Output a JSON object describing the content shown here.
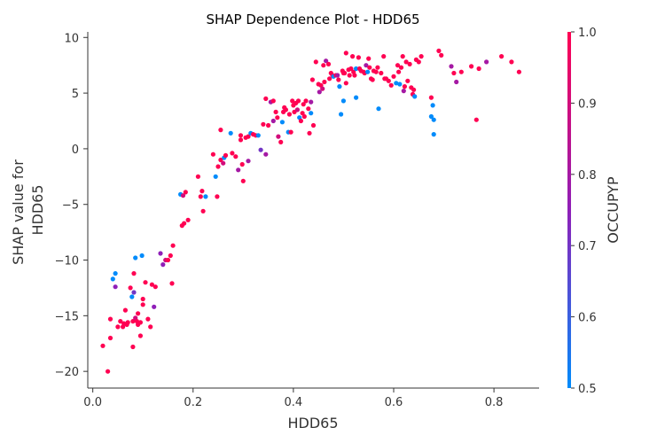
{
  "chart_data": {
    "type": "scatter",
    "title": "SHAP Dependence Plot - HDD65",
    "xlabel": "HDD65",
    "ylabel_lines": [
      "SHAP value for",
      "HDD65"
    ],
    "colorbar_label": "OCCUPYP",
    "xlim": [
      -0.01,
      0.89
    ],
    "ylim": [
      -21.5,
      10.5
    ],
    "xticks": [
      0.0,
      0.2,
      0.4,
      0.6,
      0.8
    ],
    "xtick_labels": [
      "0.0",
      "0.2",
      "0.4",
      "0.6",
      "0.8"
    ],
    "yticks": [
      10,
      5,
      0,
      -5,
      -10,
      -15,
      -20
    ],
    "ytick_labels": [
      "10",
      "5",
      "0",
      "−5",
      "−10",
      "−15",
      "−20"
    ],
    "colorbar_range": [
      0.5,
      1.0
    ],
    "colorbar_ticks": [
      1.0,
      0.9,
      0.8,
      0.7,
      0.6,
      0.5
    ],
    "colorbar_tick_labels": [
      "1.0",
      "0.9",
      "0.8",
      "0.7",
      "0.6",
      "0.5"
    ],
    "colors": {
      "low": "#008bfb",
      "mid": "#8f1fb8",
      "high": "#ff0052"
    },
    "points": [
      [
        0.02,
        -17.7,
        1.0
      ],
      [
        0.03,
        -20.0,
        1.0
      ],
      [
        0.035,
        -15.3,
        1.0
      ],
      [
        0.035,
        -17.0,
        1.0
      ],
      [
        0.04,
        -11.7,
        0.5
      ],
      [
        0.045,
        -11.2,
        0.5
      ],
      [
        0.045,
        -12.4,
        0.75
      ],
      [
        0.05,
        -16.0,
        1.0
      ],
      [
        0.055,
        -15.5,
        1.0
      ],
      [
        0.06,
        -16.0,
        1.0
      ],
      [
        0.062,
        -15.7,
        1.0
      ],
      [
        0.065,
        -14.5,
        1.0
      ],
      [
        0.068,
        -15.8,
        1.0
      ],
      [
        0.07,
        -15.6,
        1.0
      ],
      [
        0.075,
        -12.5,
        1.0
      ],
      [
        0.078,
        -13.3,
        0.5
      ],
      [
        0.08,
        -15.5,
        1.0
      ],
      [
        0.08,
        -17.8,
        1.0
      ],
      [
        0.082,
        -11.2,
        1.0
      ],
      [
        0.082,
        -12.9,
        0.7
      ],
      [
        0.085,
        -15.2,
        0.9
      ],
      [
        0.085,
        -9.8,
        0.5
      ],
      [
        0.088,
        -15.5,
        1.0
      ],
      [
        0.09,
        -15.8,
        1.0
      ],
      [
        0.09,
        -14.8,
        1.0
      ],
      [
        0.095,
        -15.6,
        1.0
      ],
      [
        0.095,
        -16.8,
        1.0
      ],
      [
        0.098,
        -9.6,
        0.5
      ],
      [
        0.1,
        -14.0,
        1.0
      ],
      [
        0.1,
        -13.5,
        1.0
      ],
      [
        0.105,
        -12.0,
        1.0
      ],
      [
        0.11,
        -15.3,
        1.0
      ],
      [
        0.115,
        -16.0,
        1.0
      ],
      [
        0.118,
        -12.2,
        1.0
      ],
      [
        0.122,
        -14.2,
        0.75
      ],
      [
        0.125,
        -12.4,
        1.0
      ],
      [
        0.135,
        -9.4,
        0.75
      ],
      [
        0.14,
        -10.4,
        0.75
      ],
      [
        0.145,
        -10.0,
        0.9
      ],
      [
        0.15,
        -10.0,
        1.0
      ],
      [
        0.155,
        -9.6,
        1.0
      ],
      [
        0.158,
        -12.1,
        1.0
      ],
      [
        0.16,
        -8.7,
        1.0
      ],
      [
        0.175,
        -4.1,
        0.5
      ],
      [
        0.178,
        -6.9,
        1.0
      ],
      [
        0.18,
        -4.2,
        0.9
      ],
      [
        0.182,
        -6.7,
        1.0
      ],
      [
        0.185,
        -3.9,
        1.0
      ],
      [
        0.19,
        -6.4,
        1.0
      ],
      [
        0.21,
        -2.5,
        1.0
      ],
      [
        0.215,
        -4.3,
        1.0
      ],
      [
        0.218,
        -3.8,
        1.0
      ],
      [
        0.22,
        -5.6,
        1.0
      ],
      [
        0.225,
        -4.3,
        0.5
      ],
      [
        0.24,
        -0.5,
        1.0
      ],
      [
        0.245,
        -2.5,
        0.5
      ],
      [
        0.248,
        -4.3,
        1.0
      ],
      [
        0.25,
        -1.6,
        1.0
      ],
      [
        0.255,
        1.7,
        1.0
      ],
      [
        0.255,
        -1.0,
        1.0
      ],
      [
        0.26,
        -1.3,
        0.9
      ],
      [
        0.262,
        -0.8,
        0.5
      ],
      [
        0.265,
        -0.6,
        1.0
      ],
      [
        0.275,
        1.4,
        0.5
      ],
      [
        0.278,
        -0.4,
        1.0
      ],
      [
        0.285,
        -0.7,
        1.0
      ],
      [
        0.29,
        -1.9,
        0.8
      ],
      [
        0.295,
        1.2,
        1.0
      ],
      [
        0.295,
        0.8,
        1.0
      ],
      [
        0.298,
        -1.4,
        1.0
      ],
      [
        0.3,
        -2.9,
        1.0
      ],
      [
        0.305,
        1.0,
        1.0
      ],
      [
        0.31,
        -1.1,
        0.8
      ],
      [
        0.31,
        1.1,
        1.0
      ],
      [
        0.315,
        1.4,
        0.5
      ],
      [
        0.32,
        1.3,
        1.0
      ],
      [
        0.325,
        1.2,
        1.0
      ],
      [
        0.33,
        1.2,
        0.5
      ],
      [
        0.335,
        -0.1,
        0.7
      ],
      [
        0.34,
        2.2,
        1.0
      ],
      [
        0.345,
        4.5,
        1.0
      ],
      [
        0.345,
        -0.5,
        0.8
      ],
      [
        0.35,
        2.1,
        1.0
      ],
      [
        0.355,
        4.2,
        0.8
      ],
      [
        0.36,
        4.3,
        1.0
      ],
      [
        0.36,
        2.5,
        0.8
      ],
      [
        0.365,
        3.3,
        1.0
      ],
      [
        0.368,
        2.8,
        1.0
      ],
      [
        0.37,
        1.1,
        0.9
      ],
      [
        0.375,
        0.6,
        1.0
      ],
      [
        0.378,
        2.4,
        0.5
      ],
      [
        0.38,
        3.3,
        1.0
      ],
      [
        0.382,
        3.7,
        1.0
      ],
      [
        0.385,
        3.5,
        1.0
      ],
      [
        0.39,
        1.5,
        0.5
      ],
      [
        0.392,
        3.1,
        1.0
      ],
      [
        0.395,
        1.5,
        1.0
      ],
      [
        0.398,
        4.3,
        1.0
      ],
      [
        0.4,
        3.9,
        1.0
      ],
      [
        0.402,
        3.3,
        1.0
      ],
      [
        0.405,
        4.1,
        1.0
      ],
      [
        0.408,
        3.5,
        0.9
      ],
      [
        0.41,
        4.3,
        1.0
      ],
      [
        0.412,
        2.8,
        0.5
      ],
      [
        0.415,
        2.5,
        1.0
      ],
      [
        0.418,
        3.2,
        1.0
      ],
      [
        0.42,
        4.0,
        1.0
      ],
      [
        0.422,
        2.9,
        1.0
      ],
      [
        0.425,
        4.3,
        1.0
      ],
      [
        0.43,
        3.6,
        1.0
      ],
      [
        0.432,
        1.4,
        1.0
      ],
      [
        0.435,
        4.2,
        0.8
      ],
      [
        0.435,
        3.2,
        0.5
      ],
      [
        0.438,
        6.2,
        1.0
      ],
      [
        0.44,
        2.1,
        1.0
      ],
      [
        0.445,
        7.8,
        1.0
      ],
      [
        0.45,
        5.8,
        1.0
      ],
      [
        0.452,
        5.1,
        0.8
      ],
      [
        0.455,
        5.7,
        1.0
      ],
      [
        0.458,
        5.4,
        0.9
      ],
      [
        0.46,
        7.5,
        1.0
      ],
      [
        0.462,
        6.0,
        1.0
      ],
      [
        0.465,
        7.9,
        0.8
      ],
      [
        0.47,
        7.6,
        1.0
      ],
      [
        0.472,
        6.3,
        1.0
      ],
      [
        0.475,
        6.8,
        1.0
      ],
      [
        0.478,
        6.6,
        1.0
      ],
      [
        0.48,
        6.5,
        0.5
      ],
      [
        0.485,
        6.6,
        1.0
      ],
      [
        0.488,
        6.6,
        0.8
      ],
      [
        0.49,
        6.2,
        1.0
      ],
      [
        0.492,
        5.6,
        0.5
      ],
      [
        0.495,
        3.1,
        0.5
      ],
      [
        0.498,
        7.0,
        1.0
      ],
      [
        0.5,
        6.8,
        1.0
      ],
      [
        0.502,
        6.8,
        1.0
      ],
      [
        0.505,
        8.6,
        1.0
      ],
      [
        0.505,
        5.9,
        1.0
      ],
      [
        0.51,
        7.1,
        1.0
      ],
      [
        0.512,
        6.6,
        1.0
      ],
      [
        0.515,
        7.2,
        1.0
      ],
      [
        0.518,
        8.3,
        1.0
      ],
      [
        0.52,
        6.9,
        1.0
      ],
      [
        0.522,
        6.6,
        1.0
      ],
      [
        0.525,
        7.2,
        0.5
      ],
      [
        0.525,
        4.6,
        0.5
      ],
      [
        0.53,
        8.2,
        1.0
      ],
      [
        0.532,
        7.2,
        1.0
      ],
      [
        0.535,
        7.0,
        1.0
      ],
      [
        0.54,
        6.9,
        1.0
      ],
      [
        0.542,
        6.8,
        1.0
      ],
      [
        0.545,
        7.5,
        0.8
      ],
      [
        0.548,
        6.9,
        0.5
      ],
      [
        0.55,
        8.1,
        1.0
      ],
      [
        0.552,
        7.3,
        1.0
      ],
      [
        0.555,
        6.3,
        1.0
      ],
      [
        0.558,
        6.2,
        1.0
      ],
      [
        0.56,
        7.0,
        1.0
      ],
      [
        0.565,
        6.9,
        1.0
      ],
      [
        0.568,
        7.3,
        1.0
      ],
      [
        0.57,
        3.6,
        0.5
      ],
      [
        0.575,
        6.8,
        1.0
      ],
      [
        0.58,
        8.3,
        1.0
      ],
      [
        0.582,
        6.3,
        1.0
      ],
      [
        0.585,
        6.3,
        1.0
      ],
      [
        0.59,
        6.1,
        1.0
      ],
      [
        0.595,
        5.7,
        1.0
      ],
      [
        0.6,
        6.5,
        1.0
      ],
      [
        0.605,
        5.9,
        0.5
      ],
      [
        0.608,
        7.5,
        1.0
      ],
      [
        0.61,
        6.9,
        1.0
      ],
      [
        0.612,
        5.8,
        0.5
      ],
      [
        0.615,
        7.3,
        1.0
      ],
      [
        0.618,
        8.3,
        1.0
      ],
      [
        0.62,
        5.2,
        0.8
      ],
      [
        0.622,
        5.6,
        1.0
      ],
      [
        0.625,
        7.8,
        1.0
      ],
      [
        0.628,
        6.1,
        1.0
      ],
      [
        0.632,
        7.6,
        1.0
      ],
      [
        0.635,
        5.5,
        1.0
      ],
      [
        0.638,
        4.9,
        1.0
      ],
      [
        0.64,
        5.3,
        1.0
      ],
      [
        0.642,
        4.7,
        0.5
      ],
      [
        0.645,
        8.0,
        1.0
      ],
      [
        0.65,
        7.8,
        1.0
      ],
      [
        0.655,
        8.3,
        1.0
      ],
      [
        0.675,
        4.6,
        1.0
      ],
      [
        0.675,
        2.9,
        0.5
      ],
      [
        0.678,
        3.9,
        0.5
      ],
      [
        0.68,
        2.6,
        0.5
      ],
      [
        0.68,
        1.3,
        0.5
      ],
      [
        0.69,
        8.8,
        1.0
      ],
      [
        0.695,
        8.4,
        1.0
      ],
      [
        0.715,
        7.4,
        0.8
      ],
      [
        0.72,
        6.8,
        1.0
      ],
      [
        0.725,
        6.0,
        0.8
      ],
      [
        0.735,
        6.9,
        1.0
      ],
      [
        0.755,
        7.4,
        1.0
      ],
      [
        0.765,
        2.6,
        1.0
      ],
      [
        0.77,
        7.2,
        1.0
      ],
      [
        0.785,
        7.8,
        0.8
      ],
      [
        0.815,
        8.3,
        1.0
      ],
      [
        0.835,
        7.8,
        1.0
      ],
      [
        0.85,
        6.9,
        1.0
      ],
      [
        0.5,
        4.3,
        0.5
      ]
    ]
  }
}
